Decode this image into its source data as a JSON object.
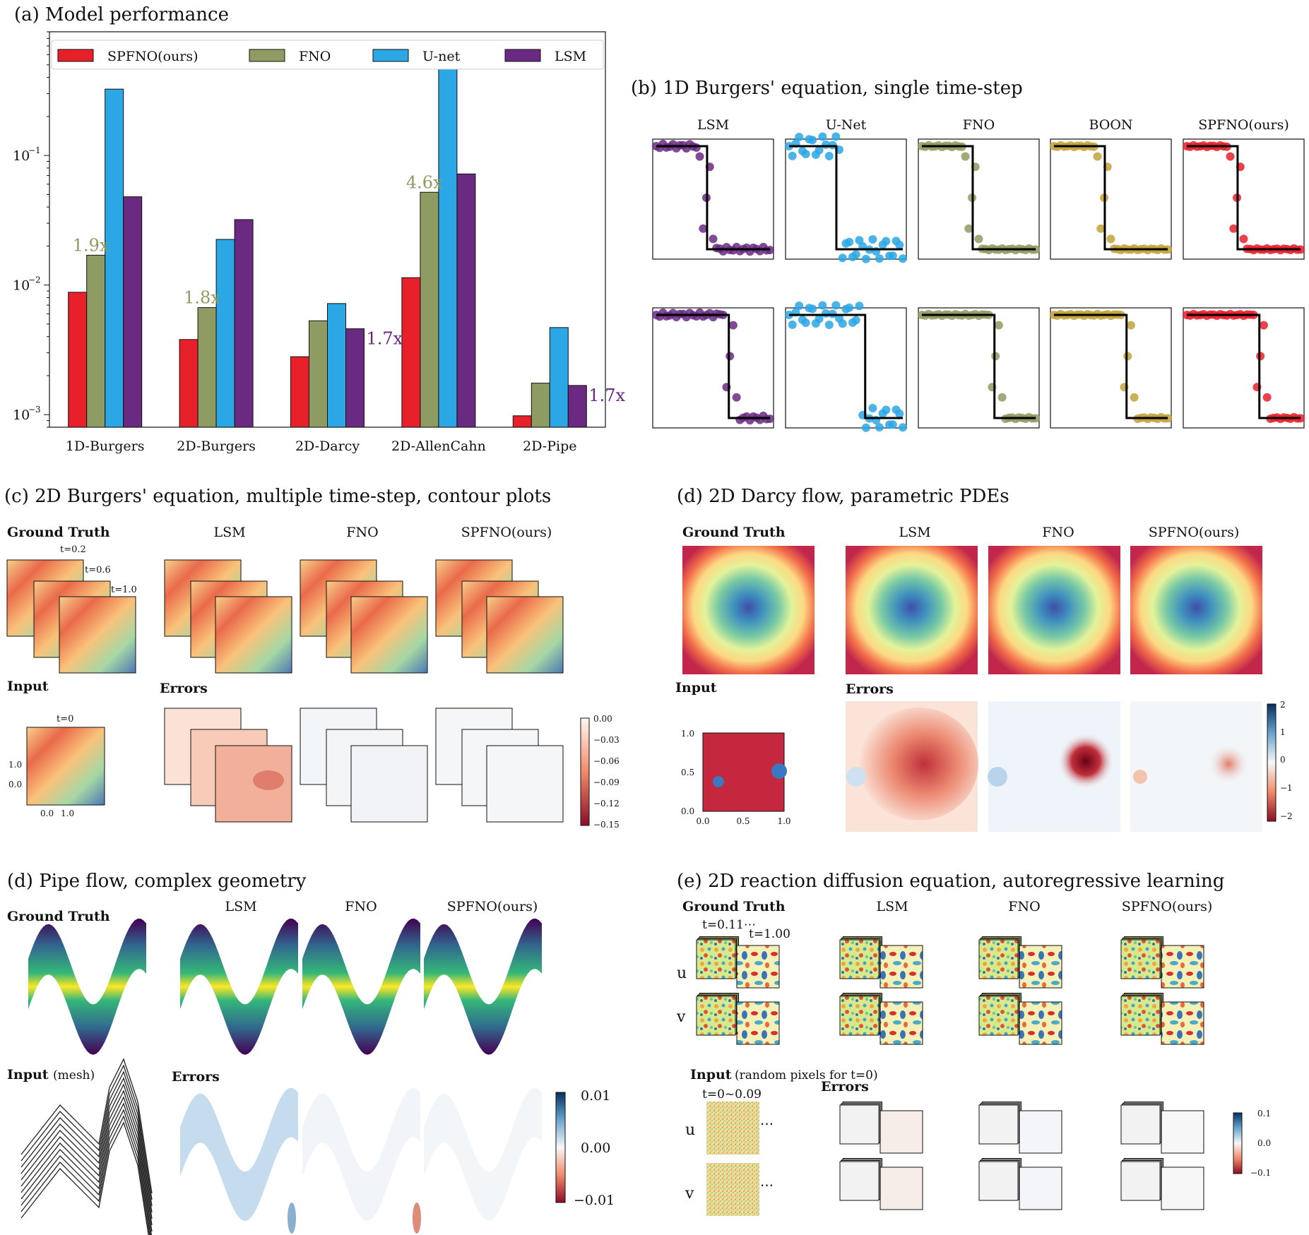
{
  "panels": {
    "a_title": "(a) Model performance",
    "b_title": "(b) 1D Burgers' equation, single time-step",
    "c_title": "(c) 2D Burgers' equation, multiple time-step, contour plots",
    "d_title": "(d) 2D Darcy flow, parametric PDEs",
    "d2_title": "(d) Pipe flow, complex geometry",
    "e_title": "(e) 2D reaction diffusion equation, autoregressive learning"
  },
  "chart_data": {
    "type": "bar",
    "yscale": "log",
    "ylim": [
      0.0008,
      0.9
    ],
    "yticks": [
      {
        "v": 0.001,
        "base": "10",
        "exp": "−3"
      },
      {
        "v": 0.01,
        "base": "10",
        "exp": "−2"
      },
      {
        "v": 0.1,
        "base": "10",
        "exp": "−1"
      }
    ],
    "legend_position": "top",
    "categories": [
      "1D-Burgers",
      "2D-Burgers",
      "2D-Darcy",
      "2D-AllenCahn",
      "2D-Pipe"
    ],
    "series": [
      {
        "name": "SPFNO(ours)",
        "color": "#e8202a",
        "values": [
          0.0088,
          0.0038,
          0.0028,
          0.0114,
          0.00098
        ]
      },
      {
        "name": "FNO",
        "color": "#8e9b62",
        "values": [
          0.017,
          0.0067,
          0.0053,
          0.052,
          0.00175
        ]
      },
      {
        "name": "U-net",
        "color": "#2aa7e4",
        "values": [
          0.325,
          0.0225,
          0.0072,
          0.62,
          0.0047
        ]
      },
      {
        "name": "LSM",
        "color": "#6a2a82",
        "values": [
          0.048,
          0.032,
          0.0046,
          0.072,
          0.00168
        ]
      }
    ],
    "annotations": [
      {
        "text": "1.9x",
        "category": 0,
        "series": 1,
        "color": "#8e9b62"
      },
      {
        "text": "1.8x",
        "category": 1,
        "series": 1,
        "color": "#8e9b62"
      },
      {
        "text": "1.7x",
        "category": 2,
        "series": 3,
        "color": "#6a2a82"
      },
      {
        "text": "4.6x",
        "category": 3,
        "series": 1,
        "color": "#8e9b62"
      },
      {
        "text": "1.7x",
        "category": 4,
        "series": 3,
        "color": "#6a2a82"
      }
    ]
  },
  "burgers1d": {
    "models": [
      {
        "name": "LSM",
        "color": "#6a2a82"
      },
      {
        "name": "U-Net",
        "color": "#2aa7e4"
      },
      {
        "name": "FNO",
        "color": "#8e9b62"
      },
      {
        "name": "BOON",
        "color": "#c2a23a"
      },
      {
        "name": "SPFNO(ours)",
        "color": "#e8202a"
      }
    ]
  },
  "burgers2d": {
    "ground_truth": "Ground Truth",
    "times": [
      "t=0.2",
      "t=0.6",
      "t=1.0"
    ],
    "models": [
      "LSM",
      "FNO",
      "SPFNO(ours)"
    ],
    "input_label": "Input",
    "input_time": "t=0",
    "input_ticks_y": [
      "1.0",
      "0.0"
    ],
    "input_ticks_x": [
      "0.0",
      "1.0"
    ],
    "errors_label": "Errors",
    "colorbar": [
      "0.00",
      "−0.03",
      "−0.06",
      "−0.09",
      "−0.12",
      "−0.15"
    ]
  },
  "darcy": {
    "ground_truth": "Ground Truth",
    "models": [
      "LSM",
      "FNO",
      "SPFNO(ours)"
    ],
    "input_label": "Input",
    "input_ticks_y": [
      "1.0",
      "0.5",
      "0.0"
    ],
    "input_ticks_x": [
      "0.0",
      "0.5",
      "1.0"
    ],
    "errors_label": "Errors",
    "colorbar": [
      "2",
      "1",
      "0",
      "−1",
      "−2"
    ]
  },
  "pipe": {
    "ground_truth": "Ground Truth",
    "models": [
      "LSM",
      "FNO",
      "SPFNO(ours)"
    ],
    "input_label": "Input",
    "input_sub": "(mesh)",
    "errors_label": "Errors",
    "colorbar": [
      "0.01",
      "0.00",
      "−0.01"
    ]
  },
  "reaction": {
    "ground_truth": "Ground Truth",
    "time_a": "t=0.11⋯",
    "time_b": "t=1.00",
    "u": "u",
    "v": "v",
    "dots": "⋯",
    "models": [
      "LSM",
      "FNO",
      "SPFNO(ours)"
    ],
    "input_label": "Input",
    "input_sub": "(random pixels for t=0)",
    "input_time": "t=0~0.09",
    "errors_label": "Errors",
    "colorbar": [
      "0.1",
      "0.0",
      "−0.1"
    ]
  }
}
